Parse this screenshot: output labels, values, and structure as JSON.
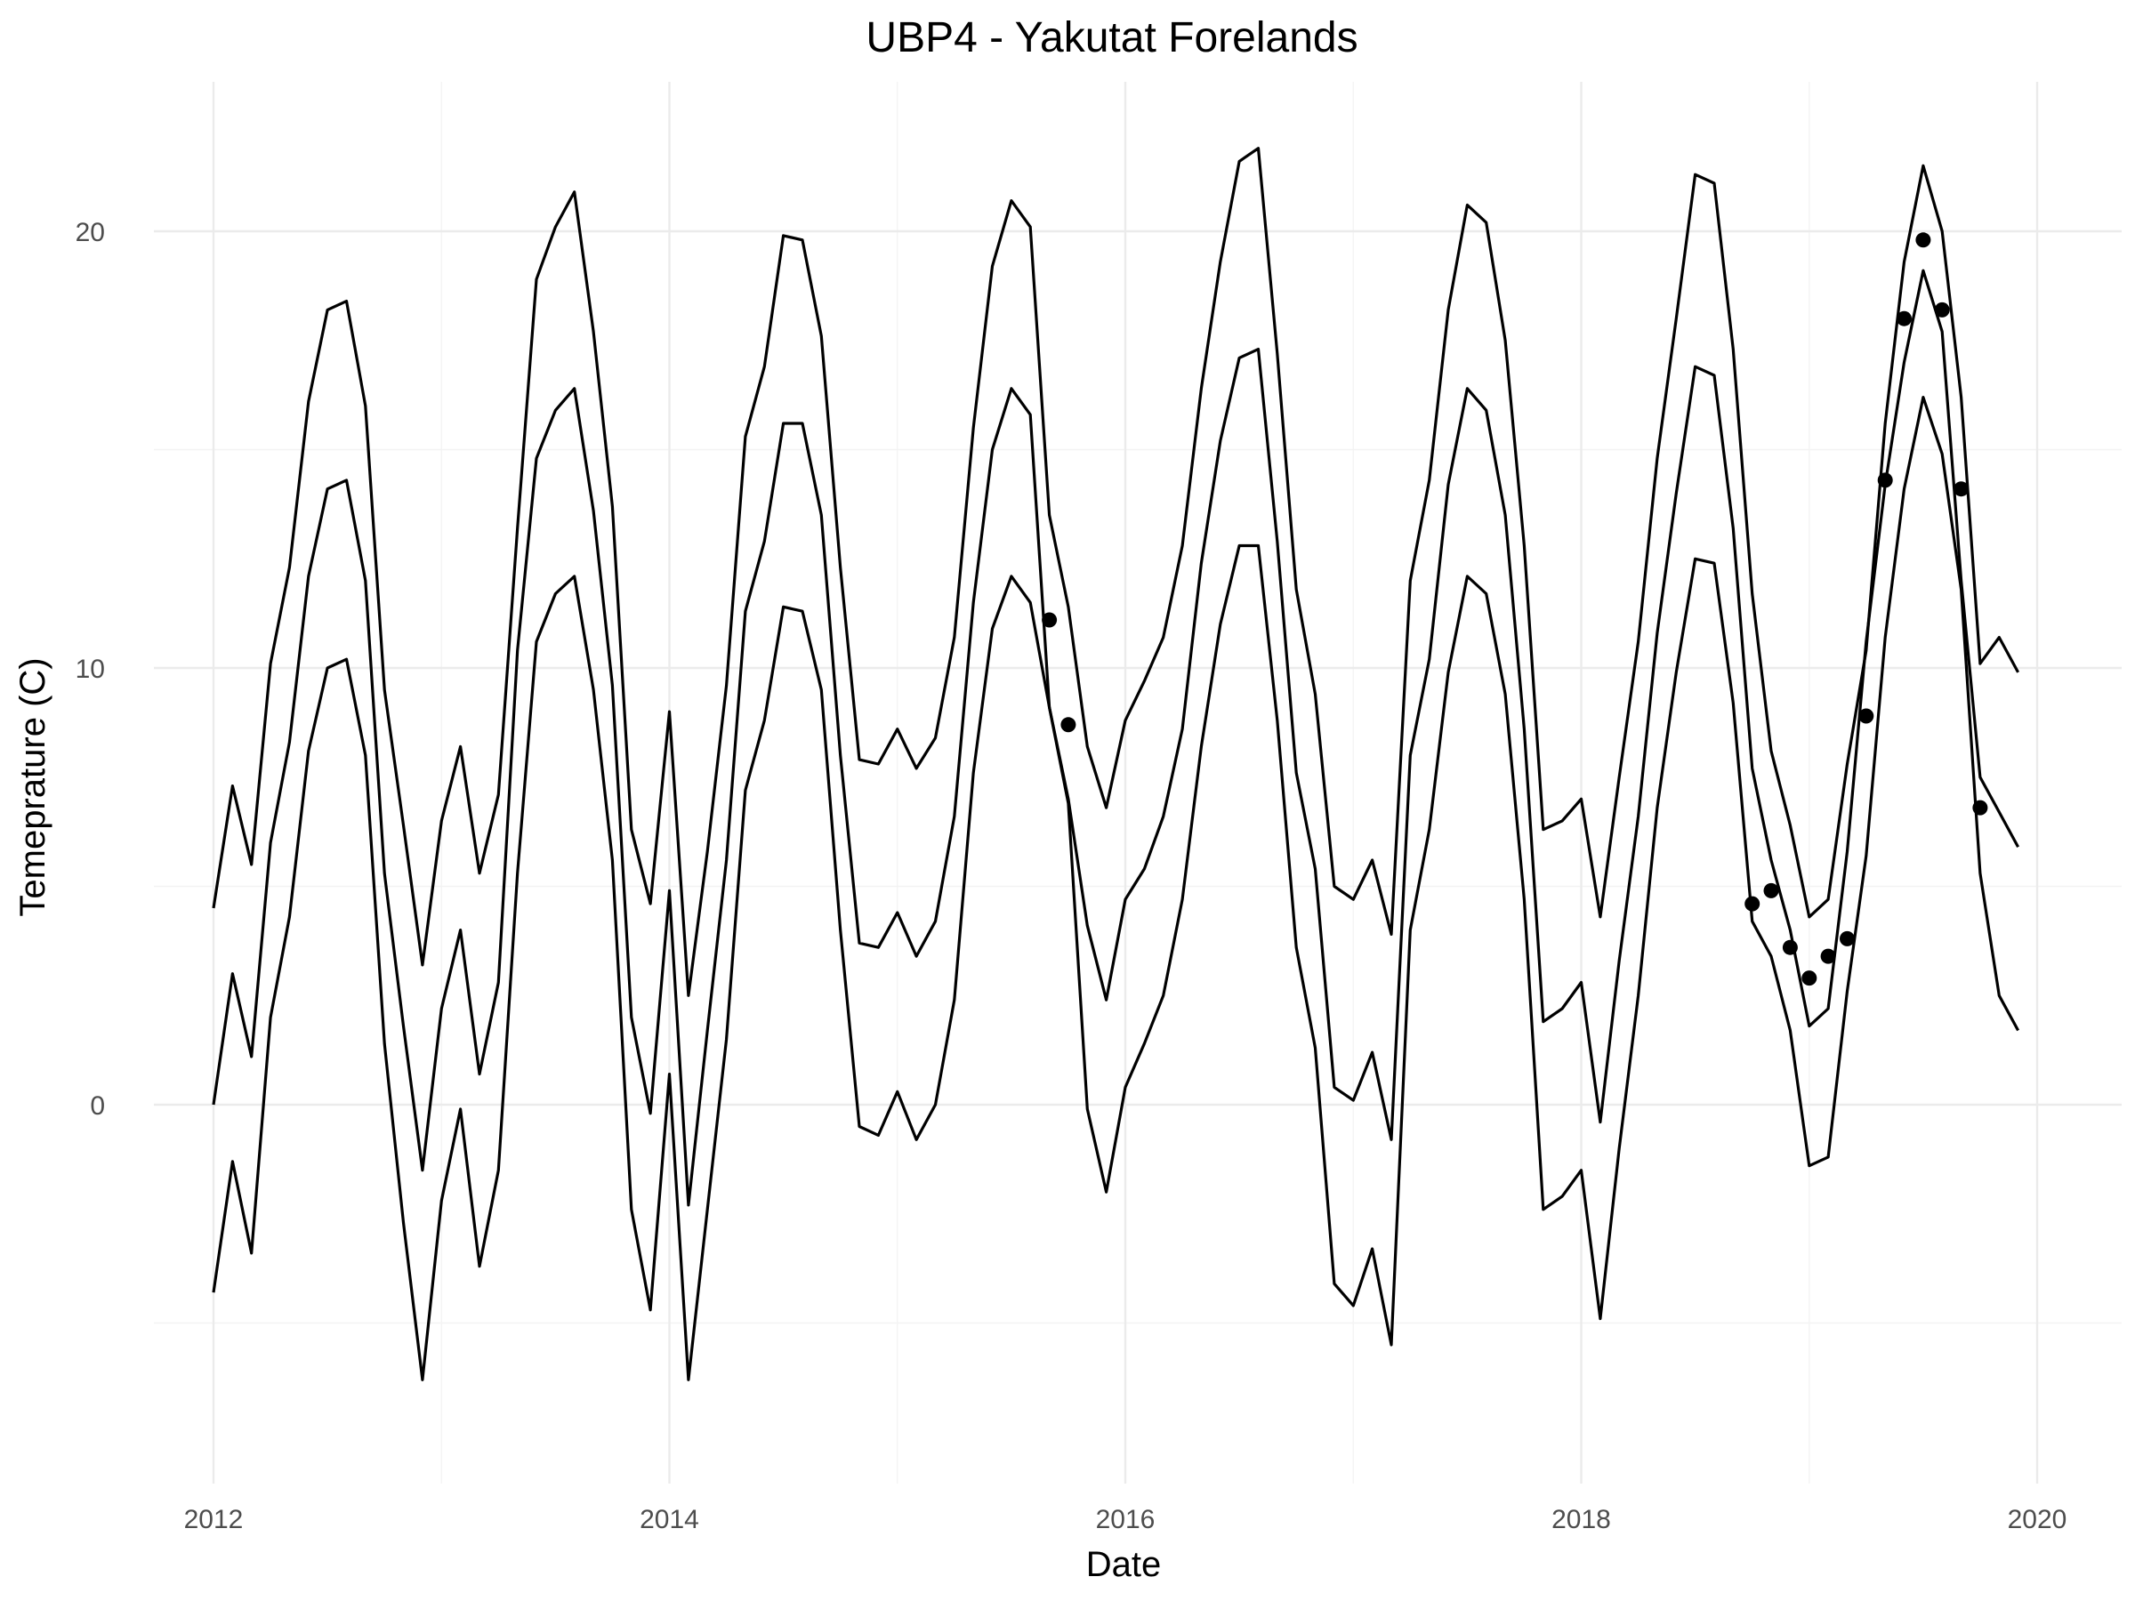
{
  "chart_data": {
    "type": "line",
    "title": "UBP4 - Yakutat Forelands",
    "xlabel": "Date",
    "ylabel": "Temeprature (C)",
    "xlim": [
      "2011-10-01",
      "2020-03-01"
    ],
    "ylim": [
      -8,
      23.5
    ],
    "x_ticks": [
      "2012",
      "2014",
      "2016",
      "2018",
      "2020"
    ],
    "y_ticks": [
      "0",
      "10",
      "20"
    ],
    "grid": true,
    "x": [
      "2012-01",
      "2012-02",
      "2012-03",
      "2012-04",
      "2012-05",
      "2012-06",
      "2012-07",
      "2012-08",
      "2012-09",
      "2012-10",
      "2012-11",
      "2012-12",
      "2013-01",
      "2013-02",
      "2013-03",
      "2013-04",
      "2013-05",
      "2013-06",
      "2013-07",
      "2013-08",
      "2013-09",
      "2013-10",
      "2013-11",
      "2013-12",
      "2014-01",
      "2014-02",
      "2014-03",
      "2014-04",
      "2014-05",
      "2014-06",
      "2014-07",
      "2014-08",
      "2014-09",
      "2014-10",
      "2014-11",
      "2014-12",
      "2015-01",
      "2015-02",
      "2015-03",
      "2015-04",
      "2015-05",
      "2015-06",
      "2015-07",
      "2015-08",
      "2015-09",
      "2015-10",
      "2015-11",
      "2015-12",
      "2016-01",
      "2016-02",
      "2016-03",
      "2016-04",
      "2016-05",
      "2016-06",
      "2016-07",
      "2016-08",
      "2016-09",
      "2016-10",
      "2016-11",
      "2016-12",
      "2017-01",
      "2017-02",
      "2017-03",
      "2017-04",
      "2017-05",
      "2017-06",
      "2017-07",
      "2017-08",
      "2017-09",
      "2017-10",
      "2017-11",
      "2017-12",
      "2018-01",
      "2018-02",
      "2018-03",
      "2018-04",
      "2018-05",
      "2018-06",
      "2018-07",
      "2018-08",
      "2018-09",
      "2018-10",
      "2018-11",
      "2018-12",
      "2019-01",
      "2019-02",
      "2019-03",
      "2019-04",
      "2019-05",
      "2019-06",
      "2019-07",
      "2019-08",
      "2019-09",
      "2019-10",
      "2019-11",
      "2019-12"
    ],
    "series": [
      {
        "values": [
          4.5,
          7.3,
          5.5,
          10.1,
          12.3,
          16.1,
          18.2,
          18.4,
          16.0,
          9.5,
          6.4,
          3.2,
          6.5,
          8.2,
          5.3,
          7.1,
          13.2,
          18.9,
          20.1,
          20.9,
          17.7,
          13.7,
          6.3,
          4.6,
          9.0,
          2.5,
          5.8,
          9.6,
          15.3,
          16.9,
          19.9,
          19.8,
          17.6,
          12.3,
          7.9,
          7.8,
          8.6,
          7.7,
          8.4,
          10.7,
          15.5,
          19.2,
          20.7,
          20.1,
          13.5,
          11.4,
          8.2,
          6.8,
          8.8,
          9.7,
          10.7,
          12.8,
          16.4,
          19.3,
          21.6,
          21.9,
          17.2,
          11.8,
          9.4,
          5.0,
          4.7,
          5.6,
          3.9,
          12.0,
          14.3,
          18.2,
          20.6,
          20.2,
          17.5,
          12.8,
          6.3,
          6.5,
          7.0,
          4.3,
          7.5,
          10.6,
          14.8,
          18.0,
          21.3,
          21.1,
          17.3,
          11.7,
          8.1,
          6.4,
          4.3,
          4.7,
          7.8,
          10.4,
          15.6,
          19.3,
          21.5,
          20.0,
          16.2,
          10.1,
          10.7,
          9.9
        ]
      },
      {
        "values": [
          0.0,
          3.0,
          1.1,
          6.0,
          8.3,
          12.1,
          14.1,
          14.3,
          12.0,
          5.3,
          1.8,
          -1.5,
          2.2,
          4.0,
          0.7,
          2.8,
          10.4,
          14.8,
          15.9,
          16.4,
          13.6,
          9.6,
          2.0,
          -0.2,
          4.9,
          -2.3,
          1.7,
          5.6,
          11.3,
          12.9,
          15.6,
          15.6,
          13.5,
          8.0,
          3.7,
          3.6,
          4.4,
          3.4,
          4.2,
          6.6,
          11.5,
          15.0,
          16.4,
          15.8,
          9.1,
          7.0,
          4.1,
          2.4,
          4.7,
          5.4,
          6.6,
          8.6,
          12.4,
          15.2,
          17.1,
          17.3,
          12.9,
          7.6,
          5.4,
          0.4,
          0.1,
          1.2,
          -0.8,
          8.0,
          10.2,
          14.2,
          16.4,
          15.9,
          13.5,
          8.6,
          1.9,
          2.2,
          2.8,
          -0.4,
          3.3,
          6.6,
          10.8,
          14.0,
          16.9,
          16.7,
          13.2,
          7.7,
          5.6,
          4.0,
          1.8,
          2.2,
          5.8,
          10.6,
          14.2,
          17.0,
          19.1,
          17.7,
          12.0,
          7.5,
          6.7,
          5.9
        ]
      },
      {
        "values": [
          -4.3,
          -1.3,
          -3.4,
          2.0,
          4.3,
          8.1,
          10.0,
          10.2,
          8.0,
          1.4,
          -2.7,
          -6.3,
          -2.2,
          -0.1,
          -3.7,
          -1.5,
          5.3,
          10.6,
          11.7,
          12.1,
          9.5,
          5.6,
          -2.4,
          -4.7,
          0.7,
          -6.3,
          -2.4,
          1.5,
          7.2,
          8.8,
          11.4,
          11.3,
          9.5,
          4.0,
          -0.5,
          -0.7,
          0.3,
          -0.8,
          0.0,
          2.4,
          7.6,
          10.9,
          12.1,
          11.5,
          9.1,
          6.9,
          -0.1,
          -2.0,
          0.4,
          1.4,
          2.5,
          4.7,
          8.2,
          11.0,
          12.8,
          12.8,
          8.8,
          3.6,
          1.3,
          -4.1,
          -4.6,
          -3.3,
          -5.5,
          4.0,
          6.3,
          9.9,
          12.1,
          11.7,
          9.4,
          4.7,
          -2.4,
          -2.1,
          -1.5,
          -4.9,
          -1.0,
          2.5,
          6.8,
          9.9,
          12.5,
          12.4,
          9.2,
          4.2,
          3.4,
          1.7,
          -1.4,
          -1.2,
          2.6,
          5.7,
          10.7,
          14.1,
          16.2,
          14.9,
          11.8,
          5.3,
          2.5,
          1.7
        ]
      }
    ],
    "points": [
      {
        "x": "2015-09",
        "y": 11.1
      },
      {
        "x": "2015-10",
        "y": 8.7
      },
      {
        "x": "2018-10",
        "y": 4.6
      },
      {
        "x": "2018-11",
        "y": 4.9
      },
      {
        "x": "2018-12",
        "y": 3.6
      },
      {
        "x": "2019-01",
        "y": 2.9
      },
      {
        "x": "2019-02",
        "y": 3.4
      },
      {
        "x": "2019-03",
        "y": 3.8
      },
      {
        "x": "2019-04",
        "y": 8.9
      },
      {
        "x": "2019-05",
        "y": 14.3
      },
      {
        "x": "2019-06",
        "y": 18.0
      },
      {
        "x": "2019-07",
        "y": 19.8
      },
      {
        "x": "2019-08",
        "y": 18.2
      },
      {
        "x": "2019-09",
        "y": 14.1
      },
      {
        "x": "2019-10",
        "y": 6.8
      }
    ]
  }
}
